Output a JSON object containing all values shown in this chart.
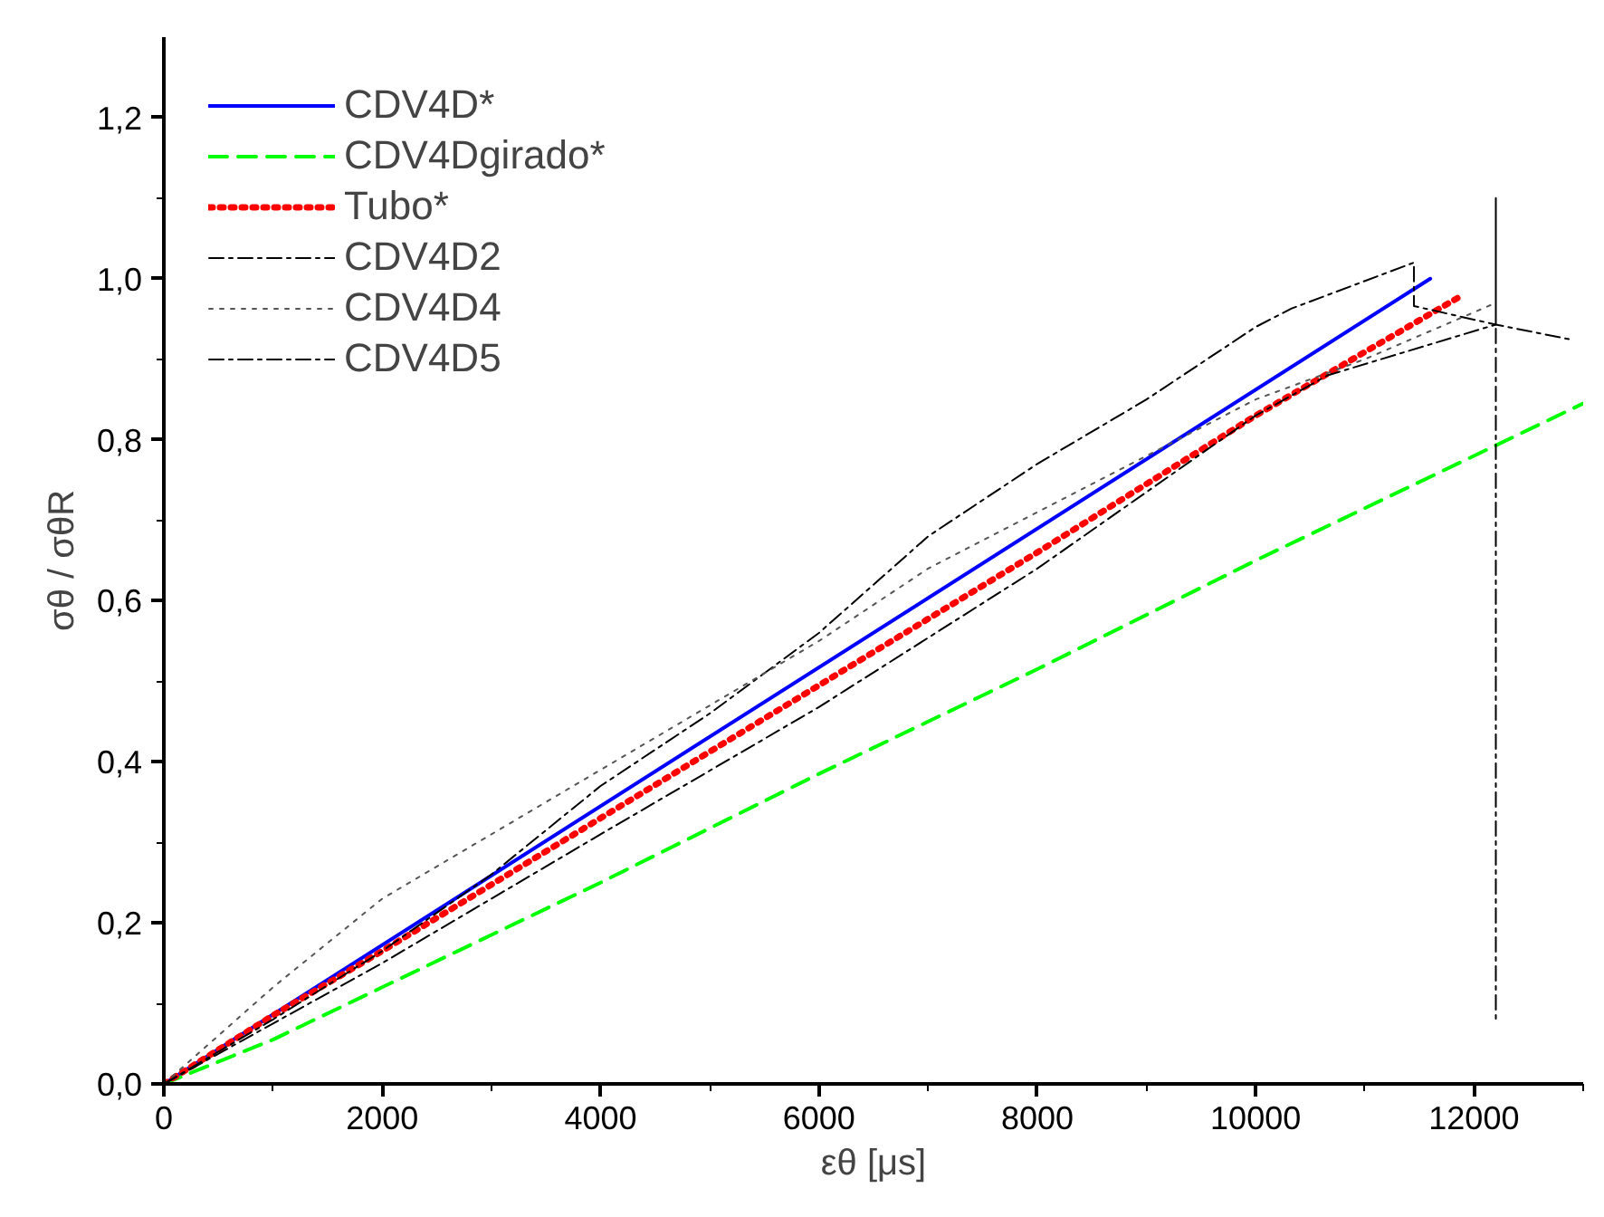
{
  "chart_data": {
    "type": "line",
    "xlabel": "εθ [μs]",
    "ylabel": "σθ / σθR",
    "xlim": [
      0,
      13000
    ],
    "ylim": [
      0,
      1.3
    ],
    "xticks": [
      0,
      2000,
      4000,
      6000,
      8000,
      10000,
      12000
    ],
    "yticks": [
      {
        "value": 0,
        "label": "0,0"
      },
      {
        "value": 0.2,
        "label": "0,2"
      },
      {
        "value": 0.4,
        "label": "0,4"
      },
      {
        "value": 0.6,
        "label": "0,6"
      },
      {
        "value": 0.8,
        "label": "0,8"
      },
      {
        "value": 1.0,
        "label": "1,0"
      },
      {
        "value": 1.2,
        "label": "1,2"
      }
    ],
    "grid": false,
    "legend": "top left",
    "series": [
      {
        "name": "CDV4D*",
        "color": "#0000ff",
        "line_style": "solid",
        "x": [
          0,
          11600
        ],
        "values": [
          0,
          1.0
        ]
      },
      {
        "name": "CDV4Dgirado*",
        "color": "#00ff00",
        "line_style": "dashed",
        "x": [
          0,
          1000,
          2000,
          4000,
          6000,
          8000,
          10000,
          13000
        ],
        "values": [
          0,
          0.055,
          0.12,
          0.25,
          0.385,
          0.515,
          0.65,
          0.845
        ]
      },
      {
        "name": "Tubo*",
        "color": "#ff0000",
        "line_style": "dotted",
        "x": [
          0,
          1000,
          2000,
          4000,
          6000,
          8000,
          10000,
          11900
        ],
        "values": [
          0,
          0.085,
          0.165,
          0.33,
          0.495,
          0.66,
          0.83,
          0.98
        ]
      },
      {
        "name": "CDV4D2",
        "color": "#000000",
        "line_style": "dashdot",
        "x": [
          0,
          1000,
          2000,
          3000,
          4000,
          5000,
          6000,
          7000,
          8000,
          9000,
          10000,
          10330,
          11450,
          11450,
          12200,
          12900
        ],
        "values": [
          0,
          0.08,
          0.165,
          0.26,
          0.37,
          0.46,
          0.56,
          0.68,
          0.77,
          0.85,
          0.94,
          0.963,
          1.02,
          0.966,
          0.943,
          0.924
        ]
      },
      {
        "name": "CDV4D4",
        "color": "#555555",
        "line_style": "dotted",
        "x": [
          0,
          1000,
          2000,
          3000,
          4000,
          5000,
          6000,
          7000,
          8000,
          9000,
          10000,
          11000,
          12200
        ],
        "values": [
          0,
          0.12,
          0.23,
          0.31,
          0.39,
          0.47,
          0.55,
          0.64,
          0.71,
          0.78,
          0.85,
          0.9,
          0.97
        ]
      },
      {
        "name": "CDV4D5",
        "color": "#000000",
        "line_style": "dashdot",
        "x": [
          0,
          2000,
          4000,
          6000,
          8000,
          10000,
          10660,
          12200,
          12200,
          12200
        ],
        "values": [
          0,
          0.15,
          0.31,
          0.468,
          0.64,
          0.83,
          0.88,
          0.943,
          1.1,
          0.075
        ]
      }
    ]
  }
}
